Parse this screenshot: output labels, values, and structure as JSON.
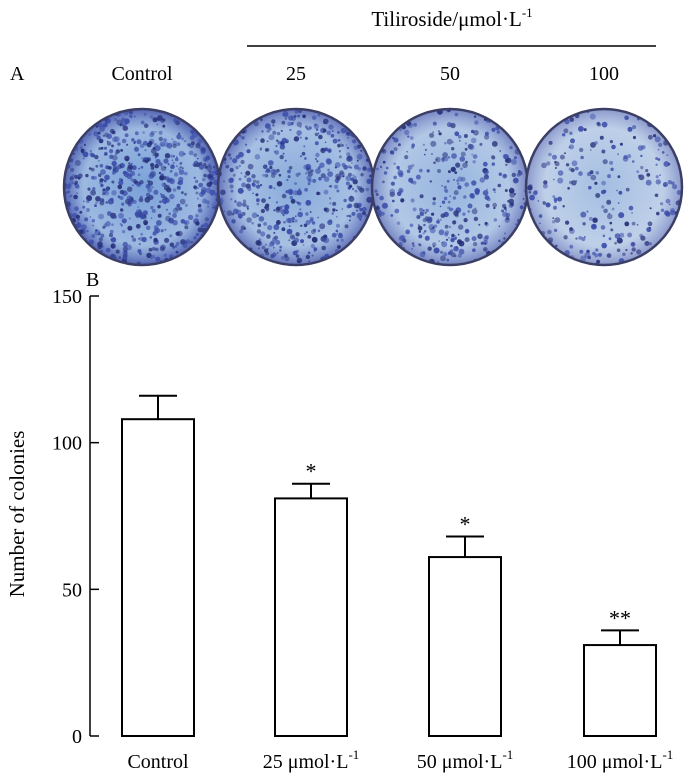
{
  "panel_a": {
    "label": "A",
    "treatment_label": "Tiliroside/μmol·L",
    "treatment_label_sup": "-1",
    "dishes": [
      {
        "label": "Control",
        "density": 1.0
      },
      {
        "label": "25",
        "density": 0.78
      },
      {
        "label": "50",
        "density": 0.55
      },
      {
        "label": "100",
        "density": 0.32
      }
    ],
    "colors": {
      "stain": "#3a4ca8",
      "stain_light": "#6f9ad6",
      "dish_bg": "#dfe6f0"
    }
  },
  "chart_data": {
    "type": "bar",
    "panel_label": "B",
    "categories": [
      "Control",
      "25 μmol·L",
      "50 μmol·L",
      "100 μmol·L"
    ],
    "category_sup": [
      "",
      "-1",
      "-1",
      "-1"
    ],
    "values": [
      108,
      81,
      61,
      31
    ],
    "errors": [
      8,
      5,
      7,
      5
    ],
    "significance": [
      "",
      "*",
      "*",
      "**"
    ],
    "ylabel": "Number of colonies",
    "ylim": [
      0,
      150
    ],
    "yticks": [
      0,
      50,
      100,
      150
    ],
    "grid": false,
    "bar_fill": "#ffffff",
    "bar_stroke": "#000000"
  }
}
